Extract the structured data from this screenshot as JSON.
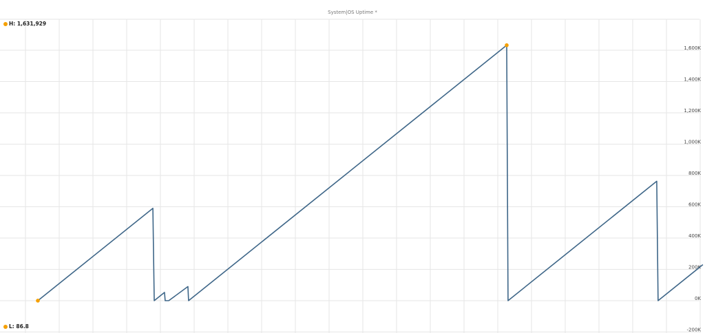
{
  "chart_data": {
    "type": "line",
    "title": "System|OS Uptime *",
    "xlabel": "",
    "ylabel": "",
    "ylim": [
      -200000,
      1800000
    ],
    "y_ticks": [
      "-200K",
      "0K",
      "200K",
      "400K",
      "600K",
      "800K",
      "1,000K",
      "1,200K",
      "1,400K",
      "1,600K"
    ],
    "y_tick_values": [
      -200000,
      0,
      200000,
      400000,
      600000,
      800000,
      1000000,
      1200000,
      1400000,
      1600000
    ],
    "y_axis_position": "right",
    "grid": true,
    "series": [
      {
        "color": "#3e6688",
        "points": [
          [
            0,
            86.8
          ],
          [
            6.83,
            590000
          ],
          [
            6.91,
            0
          ],
          [
            7.52,
            52700
          ],
          [
            7.56,
            0
          ],
          [
            7.77,
            0
          ],
          [
            8.91,
            90000
          ],
          [
            8.95,
            0
          ],
          [
            27.84,
            1631929
          ],
          [
            27.92,
            0
          ],
          [
            36.75,
            763000
          ],
          [
            36.83,
            0
          ],
          [
            39.49,
            230000
          ]
        ]
      }
    ],
    "high": {
      "label": "H: 1,631,929",
      "value": 1631929
    },
    "low": {
      "label": "L: 86.8",
      "value": 86.8
    },
    "marker_color": "#f5a000"
  }
}
